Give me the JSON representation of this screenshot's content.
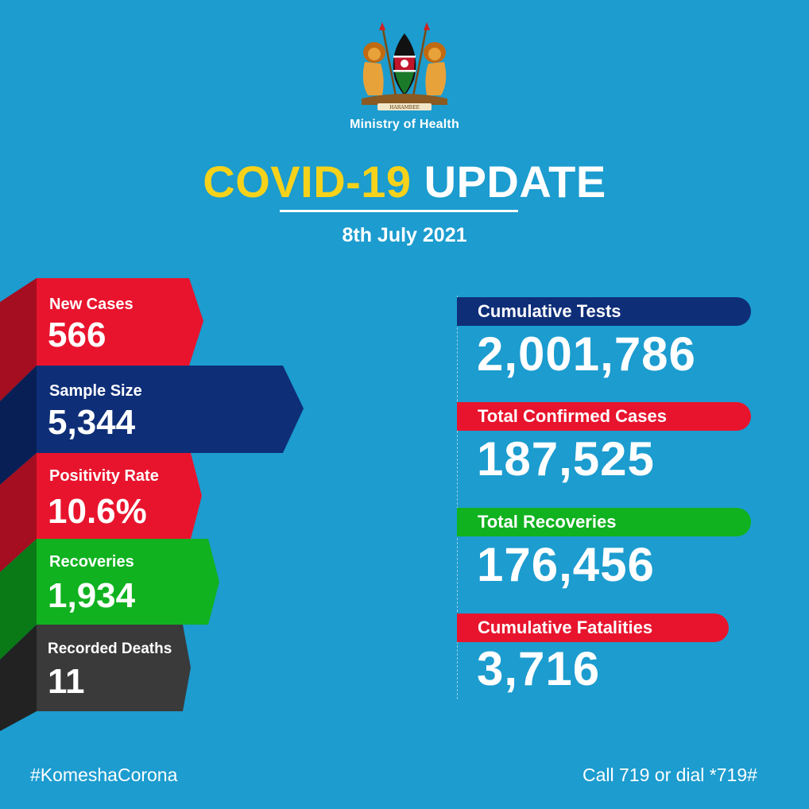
{
  "header": {
    "ministry": "Ministry of Health",
    "title_part1": "COVID-19",
    "title_part2": "UPDATE",
    "date": "8th July 2021",
    "emblem_motto": "HARAMBEE"
  },
  "daily_stats": [
    {
      "label": "New Cases",
      "value": "566",
      "color": "#e8142d"
    },
    {
      "label": "Sample Size",
      "value": "5,344",
      "color": "#0e2e78"
    },
    {
      "label": "Positivity Rate",
      "value": "10.6%",
      "color": "#e8142d"
    },
    {
      "label": "Recoveries",
      "value": "1,934",
      "color": "#10b21f"
    },
    {
      "label": "Recorded Deaths",
      "value": "11",
      "color": "#3a3a3a"
    }
  ],
  "cumulative_stats": [
    {
      "label": "Cumulative Tests",
      "value": "2,001,786",
      "color": "#0e2e78"
    },
    {
      "label": "Total Confirmed Cases",
      "value": "187,525",
      "color": "#e8142d"
    },
    {
      "label": "Total Recoveries",
      "value": "176,456",
      "color": "#10b21f"
    },
    {
      "label": "Cumulative Fatalities",
      "value": "3,716",
      "color": "#e8142d"
    }
  ],
  "footer": {
    "hashtag": "#KomeshaCorona",
    "call": "Call 719 or dial *719#"
  },
  "colors": {
    "background": "#1c9ccf",
    "title_yellow": "#f7d21a"
  }
}
